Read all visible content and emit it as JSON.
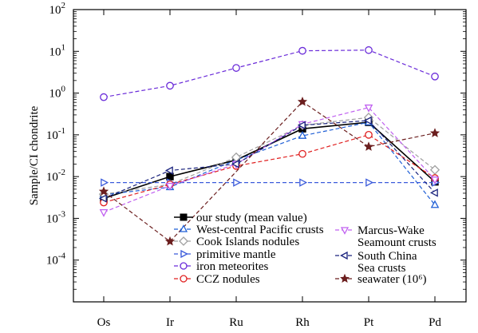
{
  "chart_data": {
    "type": "line",
    "title": "",
    "xlabel": "",
    "ylabel": "Sample/CI chondrite",
    "y_scale": "log",
    "ylim": [
      1e-05,
      100
    ],
    "y_ticks": [
      {
        "value": 0.0001,
        "base": "10",
        "exp": "-4"
      },
      {
        "value": 0.001,
        "base": "10",
        "exp": "-3"
      },
      {
        "value": 0.01,
        "base": "10",
        "exp": "-2"
      },
      {
        "value": 0.1,
        "base": "10",
        "exp": "-1"
      },
      {
        "value": 1,
        "base": "10",
        "exp": "0"
      },
      {
        "value": 10,
        "base": "10",
        "exp": "1"
      },
      {
        "value": 100,
        "base": "10",
        "exp": "2"
      }
    ],
    "categories": [
      "Os",
      "Ir",
      "Ru",
      "Rh",
      "Pt",
      "Pd"
    ],
    "grid": false,
    "series": [
      {
        "name": "our study (mean value)",
        "color": "#000000",
        "dashed": false,
        "marker": "square",
        "values": [
          0.003,
          0.01,
          0.025,
          0.14,
          0.2,
          0.0075
        ]
      },
      {
        "name": "West-central Pacific crusts",
        "color": "#1f5fd6",
        "dashed": true,
        "marker": "triangle-up",
        "values": [
          0.0037,
          0.0056,
          0.025,
          0.095,
          0.2,
          0.0021
        ]
      },
      {
        "name": "Cook Islands nodules",
        "color": "#a0a0a0",
        "dashed": true,
        "marker": "diamond",
        "values": [
          0.0038,
          0.0065,
          0.029,
          0.17,
          0.26,
          0.0145
        ]
      },
      {
        "name": "primitive mantle",
        "color": "#3b5bdb",
        "dashed": true,
        "marker": "triangle-right",
        "values": [
          0.0072,
          0.0072,
          0.0072,
          0.0072,
          0.0072,
          0.0072
        ]
      },
      {
        "name": "iron meteorites",
        "color": "#6a2bd9",
        "dashed": true,
        "marker": "circle",
        "values": [
          0.8,
          1.5,
          4.0,
          10.3,
          10.7,
          2.5
        ]
      },
      {
        "name": "CCZ nodules",
        "color": "#e02020",
        "dashed": true,
        "marker": "circle",
        "values": [
          0.0024,
          0.0065,
          0.018,
          0.035,
          0.1,
          0.0092
        ]
      },
      {
        "name": "Marcus-Wake Seamount crusts",
        "legend_lines": [
          "Marcus-Wake",
          "Seamount crusts"
        ],
        "color": "#c060f0",
        "dashed": true,
        "marker": "triangle-down",
        "values": [
          0.0014,
          0.006,
          0.02,
          0.18,
          0.45,
          0.0085
        ]
      },
      {
        "name": "South China Sea crusts",
        "legend_lines": [
          "South China",
          "Sea crusts"
        ],
        "color": "#1a237e",
        "dashed": true,
        "marker": "triangle-left",
        "values": [
          0.003,
          0.014,
          0.02,
          0.17,
          0.22,
          0.0041
        ]
      },
      {
        "name": "seawater (10⁶)",
        "color": "#6b1e1e",
        "dashed": true,
        "marker": "star",
        "values": [
          0.0044,
          0.00028,
          null,
          0.62,
          0.052,
          0.11
        ]
      }
    ],
    "legend_placement": "bottom-center"
  }
}
